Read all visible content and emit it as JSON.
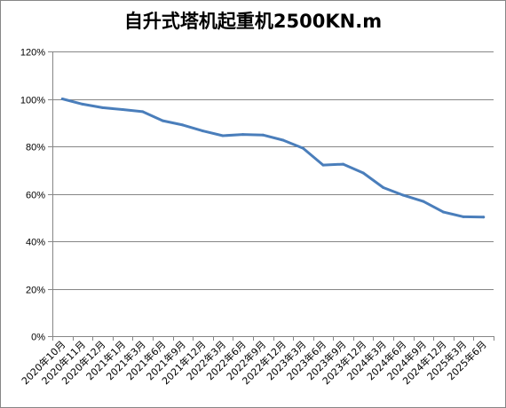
{
  "chart_data": {
    "type": "line",
    "title": "自升式塔机起重机2500KN.m",
    "categories": [
      "2020年10月",
      "2020年11月",
      "2020年12月",
      "2021年1月",
      "2021年3月",
      "2021年6月",
      "2021年9月",
      "2021年12月",
      "2022年3月",
      "2022年6月",
      "2022年9月",
      "2022年12月",
      "2023年3月",
      "2023年6月",
      "2023年9月",
      "2023年12月",
      "2024年3月",
      "2024年6月",
      "2024年9月",
      "2024年12月",
      "2025年3月",
      "2025年6月"
    ],
    "series": [
      {
        "values": [
          100,
          97.8,
          96.3,
          95.5,
          94.6,
          90.8,
          89.0,
          86.5,
          84.5,
          85.0,
          84.8,
          82.6,
          79.2,
          72.1,
          72.5,
          68.8,
          62.6,
          59.4,
          56.8,
          52.3,
          50.3,
          50.2
        ]
      }
    ],
    "y_ticks": [
      "0%",
      "20%",
      "40%",
      "60%",
      "80%",
      "100%",
      "120%"
    ],
    "ylim": [
      0,
      120
    ],
    "grid": true,
    "line_color": "#4a7ebb"
  }
}
